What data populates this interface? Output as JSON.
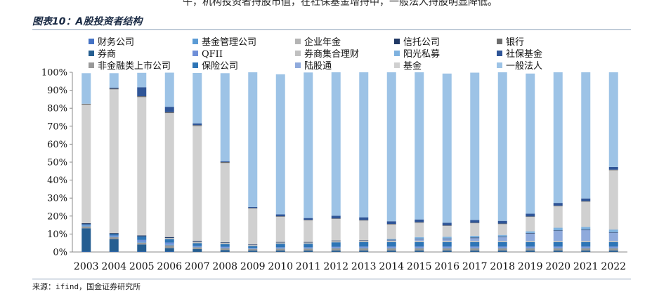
{
  "header": {
    "top_text": "牛，机构投资者持股市值，在社保基金增持中，一般法人持股明显降低。",
    "title": "图表10：A股投资者结构",
    "source": "来源：ifind，国金证券研究所"
  },
  "chart_data": {
    "type": "bar",
    "stacked": true,
    "title": "",
    "xlabel": "",
    "ylabel": "",
    "ylim": [
      0,
      100
    ],
    "y_ticks": [
      "0%",
      "10%",
      "20%",
      "30%",
      "40%",
      "50%",
      "60%",
      "70%",
      "80%",
      "90%",
      "100%"
    ],
    "legend_position": "top",
    "categories": [
      "2003",
      "2004",
      "2005",
      "2006",
      "2007",
      "2008",
      "2009",
      "2010",
      "2011",
      "2012",
      "2013",
      "2014",
      "2015",
      "2016",
      "2017",
      "2018",
      "2019",
      "2020",
      "2021",
      "2022"
    ],
    "series": [
      {
        "name": "财务公司",
        "color": "#4472c4",
        "values": [
          0.2,
          0.2,
          0.2,
          0.2,
          0.1,
          0.1,
          0.1,
          0.1,
          0.1,
          0.1,
          0.1,
          0.1,
          0.1,
          0.1,
          0.1,
          0.1,
          0.1,
          0.1,
          0.1,
          0.1
        ]
      },
      {
        "name": "券商",
        "color": "#255e91",
        "values": [
          13,
          7,
          4,
          2,
          1.5,
          1,
          0.8,
          0.8,
          0.8,
          0.8,
          0.8,
          0.8,
          0.8,
          0.8,
          0.8,
          0.8,
          0.8,
          0.8,
          0.8,
          0.8
        ]
      },
      {
        "name": "非金融类上市公司",
        "color": "#999999",
        "values": [
          1,
          1,
          1,
          1.5,
          1,
          1,
          0.8,
          1,
          1,
          1.2,
          1.2,
          1.2,
          1.2,
          1.2,
          1.2,
          1.2,
          1.2,
          1.2,
          1.2,
          1.2
        ]
      },
      {
        "name": "基金管理公司",
        "color": "#5b9bd5",
        "values": [
          0.5,
          0.5,
          0.5,
          0.5,
          0.3,
          0.3,
          0.3,
          0.3,
          0.3,
          0.3,
          0.3,
          0.3,
          0.3,
          0.3,
          0.3,
          0.3,
          0.3,
          0.3,
          0.3,
          0.3
        ]
      },
      {
        "name": "QFII",
        "color": "#6f8fd8",
        "values": [
          0.3,
          0.5,
          1,
          1,
          0.5,
          0.5,
          0.3,
          0.4,
          0.4,
          0.5,
          0.6,
          0.6,
          0.6,
          0.6,
          0.6,
          0.6,
          0.6,
          0.6,
          0.6,
          0.6
        ]
      },
      {
        "name": "保险公司",
        "color": "#2e75b6",
        "values": [
          0.5,
          0.8,
          2,
          2,
          1.5,
          1.5,
          1,
          2,
          2,
          2.5,
          2.5,
          2.5,
          2.5,
          2.5,
          2.5,
          2.5,
          2.5,
          2.5,
          2.5,
          2.5
        ]
      },
      {
        "name": "企业年金",
        "color": "#b4b4b4",
        "values": [
          0,
          0,
          0,
          0.1,
          0.2,
          0.3,
          0.3,
          0.3,
          0.3,
          0.3,
          0.3,
          0.3,
          0.3,
          0.3,
          0.3,
          0.3,
          0.3,
          0.3,
          0.3,
          0.3
        ]
      },
      {
        "name": "券商集合理财",
        "color": "#c0c0c0",
        "values": [
          0,
          0,
          0,
          0.5,
          0.5,
          0.5,
          0.3,
          0.4,
          0.4,
          0.4,
          0.4,
          0.4,
          0.4,
          0.4,
          0.4,
          0.4,
          0.4,
          0.4,
          0.4,
          0.4
        ]
      },
      {
        "name": "陆股通",
        "color": "#8faadc",
        "values": [
          0,
          0,
          0,
          0,
          0,
          0,
          0,
          0,
          0,
          0,
          0,
          0.3,
          0.8,
          1,
          1.5,
          2,
          4,
          5.5,
          6,
          4.5
        ]
      },
      {
        "name": "信托公司",
        "color": "#203864",
        "values": [
          0.5,
          0.5,
          0.5,
          0.5,
          0.5,
          0.3,
          0.3,
          0.3,
          0.3,
          0.3,
          0.3,
          0.3,
          0.3,
          0.3,
          0.3,
          0.3,
          0.3,
          0.3,
          0.3,
          0.3
        ]
      },
      {
        "name": "阳光私募",
        "color": "#7fb2df",
        "values": [
          0,
          0,
          0,
          0,
          0,
          0,
          0,
          0,
          0,
          0,
          0,
          0.5,
          1,
          1,
          1,
          1,
          1,
          1.5,
          1.5,
          1.5
        ]
      },
      {
        "name": "基金",
        "color": "#d0d0d0",
        "values": [
          66,
          80,
          77,
          69,
          64,
          44,
          20,
          14,
          12,
          12,
          11,
          8,
          8,
          6,
          7,
          6,
          8,
          12,
          14,
          33
        ]
      },
      {
        "name": "银行",
        "color": "#6d6d6d",
        "values": [
          0.5,
          0.5,
          0.5,
          0.5,
          0.5,
          0.5,
          0.3,
          0.3,
          0.3,
          0.3,
          0.3,
          0.3,
          0.3,
          0.3,
          0.3,
          0.3,
          0.3,
          0.3,
          0.3,
          0.3
        ]
      },
      {
        "name": "社保基金",
        "color": "#2f5597",
        "values": [
          0,
          0.5,
          5,
          3,
          1,
          0.5,
          0.5,
          1,
          1,
          1.5,
          1.5,
          1.5,
          1.5,
          1.5,
          1.5,
          1.5,
          1.5,
          1.5,
          1.5,
          1.5
        ]
      },
      {
        "name": "一般法人",
        "color": "#9dc3e6",
        "values": [
          17,
          8,
          8,
          19,
          28,
          49,
          75,
          78,
          81,
          80,
          81,
          83,
          82,
          83,
          82,
          83,
          78,
          74,
          72,
          56
        ]
      }
    ]
  }
}
